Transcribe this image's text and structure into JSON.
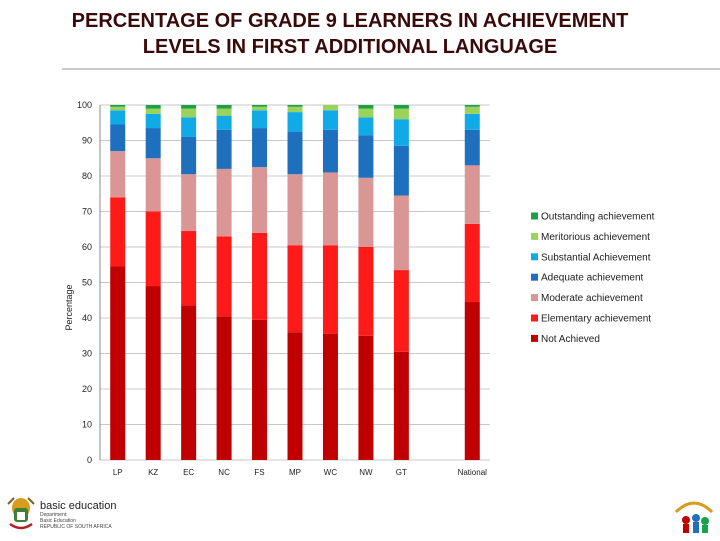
{
  "title": {
    "line1": "PERCENTAGE OF GRADE 9 LEARNERS IN ACHIEVEMENT",
    "line2": "LEVELS IN FIRST ADDITIONAL LANGUAGE"
  },
  "chart_data": {
    "type": "bar",
    "stacked": true,
    "title": "PERCENTAGE OF GRADE 9 LEARNERS IN ACHIEVEMENT LEVELS IN FIRST ADDITIONAL LANGUAGE",
    "xlabel": "",
    "ylabel": "Percentage",
    "ylim": [
      0,
      100
    ],
    "yticks": [
      0,
      10,
      20,
      30,
      40,
      50,
      60,
      70,
      80,
      90,
      100
    ],
    "grid": true,
    "legend_position": "right",
    "categories": [
      "LP",
      "KZ",
      "EC",
      "NC",
      "FS",
      "MP",
      "WC",
      "NW",
      "GT",
      "",
      "National"
    ],
    "series": [
      {
        "name": "Not Achieved",
        "color": "#c00000",
        "values": [
          54.5,
          49,
          43.5,
          40.5,
          39.5,
          36,
          35.5,
          35,
          30.5,
          null,
          44.5
        ]
      },
      {
        "name": "Elementary achievement",
        "color": "#ff1a1a",
        "values": [
          19.5,
          21,
          21,
          22.5,
          24.5,
          24.5,
          25,
          25,
          23,
          null,
          22
        ]
      },
      {
        "name": "Moderate achievement",
        "color": "#da9694",
        "values": [
          13,
          15,
          16,
          19,
          18.5,
          20,
          20.5,
          19.5,
          21,
          null,
          16.5
        ]
      },
      {
        "name": "Adequate achievement",
        "color": "#1f6fbf",
        "values": [
          7.5,
          8.5,
          10.5,
          11,
          11,
          12,
          12,
          12,
          14,
          null,
          10
        ]
      },
      {
        "name": "Substantial Achievement",
        "color": "#10aae6",
        "values": [
          4,
          4,
          5.5,
          4,
          5,
          5.5,
          5.5,
          5,
          7.5,
          null,
          4.5
        ]
      },
      {
        "name": "Meritorious achievement",
        "color": "#9bd35a",
        "values": [
          1,
          1.5,
          2.5,
          2,
          1,
          1.5,
          1.5,
          2.5,
          3,
          null,
          2
        ]
      },
      {
        "name": "Outstanding achievement",
        "color": "#1aa14a",
        "values": [
          0.5,
          1,
          1,
          1,
          0.5,
          0.5,
          0,
          1,
          1,
          null,
          0.5
        ]
      }
    ]
  },
  "logo": {
    "line1": "basic education",
    "line2a": "Department:",
    "line2b": "Basic Education",
    "line2c": "REPUBLIC OF SOUTH AFRICA"
  }
}
